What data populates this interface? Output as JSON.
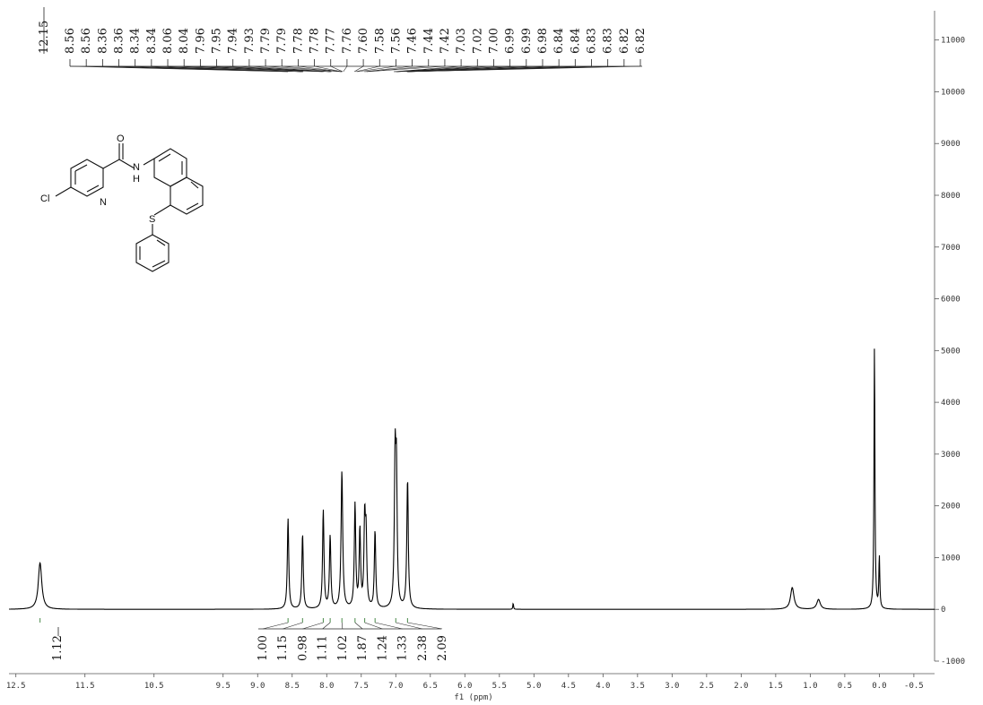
{
  "chart_data": {
    "type": "line",
    "xlabel": "f1 (ppm)",
    "ylabel": "",
    "xlim": [
      12.6,
      -0.8
    ],
    "ylim": [
      -1000,
      11600
    ],
    "x_ticks": [
      "12.5",
      "11.5",
      "10.5",
      "9.5",
      "9.0",
      "8.5",
      "8.0",
      "7.5",
      "7.0",
      "6.5",
      "6.0",
      "5.5",
      "5.0",
      "4.5",
      "4.0",
      "3.5",
      "3.0",
      "2.5",
      "2.0",
      "1.5",
      "1.0",
      "0.5",
      "0.0",
      "-0.5"
    ],
    "x_tick_values": [
      12.5,
      11.5,
      10.5,
      9.5,
      9.0,
      8.5,
      8.0,
      7.5,
      7.0,
      6.5,
      6.0,
      5.5,
      5.0,
      4.5,
      4.0,
      3.5,
      3.0,
      2.5,
      2.0,
      1.5,
      1.0,
      0.5,
      0.0,
      -0.5
    ],
    "y_ticks": [
      "-1000",
      "0",
      "1000",
      "2000",
      "3000",
      "4000",
      "5000",
      "6000",
      "7000",
      "8000",
      "9000",
      "10000",
      "11000"
    ],
    "y_tick_values": [
      -1000,
      0,
      1000,
      2000,
      3000,
      4000,
      5000,
      6000,
      7000,
      8000,
      9000,
      10000,
      11000
    ],
    "peaks": [
      {
        "ppm": 12.15,
        "height": 900,
        "width": 0.03
      },
      {
        "ppm": 8.56,
        "height": 1750,
        "width": 0.012
      },
      {
        "ppm": 8.35,
        "height": 1450,
        "width": 0.012
      },
      {
        "ppm": 8.05,
        "height": 1900,
        "width": 0.012
      },
      {
        "ppm": 7.95,
        "height": 1400,
        "width": 0.012
      },
      {
        "ppm": 7.78,
        "height": 2650,
        "width": 0.014
      },
      {
        "ppm": 7.59,
        "height": 2000,
        "width": 0.012
      },
      {
        "ppm": 7.52,
        "height": 1500,
        "width": 0.012
      },
      {
        "ppm": 7.45,
        "height": 1650,
        "width": 0.012
      },
      {
        "ppm": 7.43,
        "height": 1300,
        "width": 0.012
      },
      {
        "ppm": 7.3,
        "height": 1500,
        "width": 0.012
      },
      {
        "ppm": 7.01,
        "height": 2800,
        "width": 0.013
      },
      {
        "ppm": 6.99,
        "height": 2400,
        "width": 0.012
      },
      {
        "ppm": 6.83,
        "height": 2500,
        "width": 0.013
      },
      {
        "ppm": 5.3,
        "height": 120,
        "width": 0.006
      },
      {
        "ppm": 1.26,
        "height": 420,
        "width": 0.03
      },
      {
        "ppm": 0.88,
        "height": 190,
        "width": 0.03
      },
      {
        "ppm": 0.07,
        "height": 5100,
        "width": 0.008
      },
      {
        "ppm": 0.0,
        "height": 1000,
        "width": 0.008
      }
    ],
    "peak_labels": [
      "12.15",
      "8.56",
      "8.56",
      "8.36",
      "8.36",
      "8.34",
      "8.34",
      "8.06",
      "8.04",
      "7.96",
      "7.95",
      "7.94",
      "7.93",
      "7.79",
      "7.79",
      "7.78",
      "7.78",
      "7.77",
      "7.76",
      "7.60",
      "7.58",
      "7.56",
      "7.46",
      "7.44",
      "7.42",
      "7.03",
      "7.02",
      "7.00",
      "6.99",
      "6.99",
      "6.98",
      "6.84",
      "6.84",
      "6.83",
      "6.83",
      "6.82",
      "6.82"
    ],
    "integrals": [
      {
        "value": "1.12",
        "ppm": 12.15
      },
      {
        "value": "1.00",
        "ppm": 8.56
      },
      {
        "value": "1.15",
        "ppm": 8.35
      },
      {
        "value": "0.98",
        "ppm": 8.05
      },
      {
        "value": "1.11",
        "ppm": 7.95
      },
      {
        "value": "1.02",
        "ppm": 7.78
      },
      {
        "value": "1.87",
        "ppm": 7.59
      },
      {
        "value": "1.24",
        "ppm": 7.45
      },
      {
        "value": "1.33",
        "ppm": 7.3
      },
      {
        "value": "2.38",
        "ppm": 7.0
      },
      {
        "value": "2.09",
        "ppm": 6.83
      }
    ],
    "grid": false
  },
  "structure": {
    "atoms": [
      "O",
      "N",
      "H",
      "Cl",
      "N",
      "S"
    ]
  }
}
